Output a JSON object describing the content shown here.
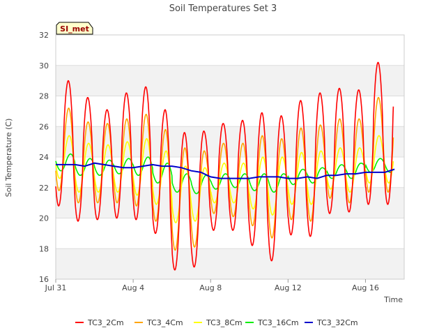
{
  "chart_data": {
    "type": "line",
    "title": "Soil Temperatures Set 3",
    "xlabel": "Time",
    "ylabel": "Soil Temperature (C)",
    "site_badge": "SI_met",
    "x_ticks": [
      "Jul 31",
      "Aug 4",
      "Aug 8",
      "Aug 12",
      "Aug 16"
    ],
    "x_tick_days": [
      0,
      4,
      8,
      12,
      16
    ],
    "xlim_days": [
      0,
      18
    ],
    "ylim": [
      16,
      32
    ],
    "y_ticks": [
      16,
      18,
      20,
      22,
      24,
      26,
      28,
      30,
      32
    ],
    "grid": true,
    "legend_position": "bottom",
    "day_offsets": [
      0.0,
      0.5,
      1.0,
      1.5,
      2.0,
      2.5,
      3.0,
      3.5,
      4.0,
      4.5,
      5.0,
      5.5,
      6.0,
      6.5,
      7.0,
      7.5,
      8.0,
      8.5,
      9.0,
      9.5,
      10.0,
      10.5,
      11.0,
      11.5,
      12.0,
      12.5,
      13.0,
      13.5,
      14.0,
      14.5,
      15.0,
      15.5,
      16.0,
      16.5,
      17.0,
      17.5
    ],
    "daily_max": {
      "TC3_2Cm": [
        29.0,
        27.9,
        27.1,
        28.2,
        28.6,
        27.1,
        25.6,
        25.7,
        26.2,
        26.4,
        26.9,
        26.7,
        27.7,
        28.2,
        28.5,
        28.4,
        30.2
      ],
      "TC3_4Cm": [
        27.2,
        26.3,
        26.2,
        26.5,
        26.8,
        25.8,
        24.6,
        24.4,
        24.9,
        24.9,
        25.4,
        25.2,
        25.9,
        26.1,
        26.5,
        26.5,
        27.9
      ],
      "TC3_8Cm": [
        25.4,
        24.9,
        24.8,
        25.0,
        25.2,
        24.4,
        23.4,
        23.3,
        23.6,
        23.6,
        24.0,
        24.0,
        24.3,
        24.4,
        24.6,
        24.6,
        25.4
      ],
      "TC3_16Cm": [
        24.2,
        23.9,
        23.8,
        23.9,
        24.0,
        23.6,
        22.9,
        22.8,
        22.9,
        22.9,
        22.9,
        22.9,
        23.2,
        23.3,
        23.5,
        23.6,
        23.9
      ]
    },
    "daily_min": {
      "TC3_2Cm": [
        20.8,
        19.8,
        19.9,
        20.0,
        19.9,
        19.0,
        16.6,
        16.8,
        19.2,
        19.2,
        18.2,
        17.2,
        18.9,
        18.8,
        20.3,
        20.4,
        20.9
      ],
      "TC3_4Cm": [
        21.8,
        21.0,
        21.0,
        21.0,
        20.8,
        19.8,
        17.9,
        18.1,
        20.3,
        20.1,
        19.5,
        18.7,
        19.9,
        19.8,
        21.3,
        21.0,
        21.7
      ],
      "TC3_8Cm": [
        22.6,
        21.7,
        21.7,
        21.7,
        21.5,
        20.9,
        19.7,
        19.8,
        21.0,
        21.0,
        20.6,
        20.2,
        20.9,
        20.9,
        21.9,
        21.7,
        22.3
      ],
      "TC3_16Cm": [
        23.1,
        22.8,
        22.8,
        22.9,
        22.8,
        22.3,
        21.7,
        21.6,
        21.9,
        22.0,
        21.8,
        21.7,
        22.2,
        22.3,
        22.6,
        22.6,
        23.0
      ]
    },
    "series": [
      {
        "name": "TC3_2Cm",
        "color": "#ff0000"
      },
      {
        "name": "TC3_4Cm",
        "color": "#ffa500"
      },
      {
        "name": "TC3_8Cm",
        "color": "#ffff00"
      },
      {
        "name": "TC3_16Cm",
        "color": "#00ee00"
      },
      {
        "name": "TC3_32Cm",
        "color": "#0000cc",
        "values": [
          23.5,
          23.5,
          23.5,
          23.4,
          23.6,
          23.5,
          23.4,
          23.3,
          23.3,
          23.4,
          23.5,
          23.4,
          23.4,
          23.3,
          23.1,
          23.0,
          22.7,
          22.6,
          22.6,
          22.6,
          22.6,
          22.7,
          22.7,
          22.7,
          22.6,
          22.6,
          22.7,
          22.6,
          22.8,
          22.8,
          22.9,
          22.9,
          23.0,
          23.0,
          23.0,
          23.2
        ]
      }
    ]
  }
}
